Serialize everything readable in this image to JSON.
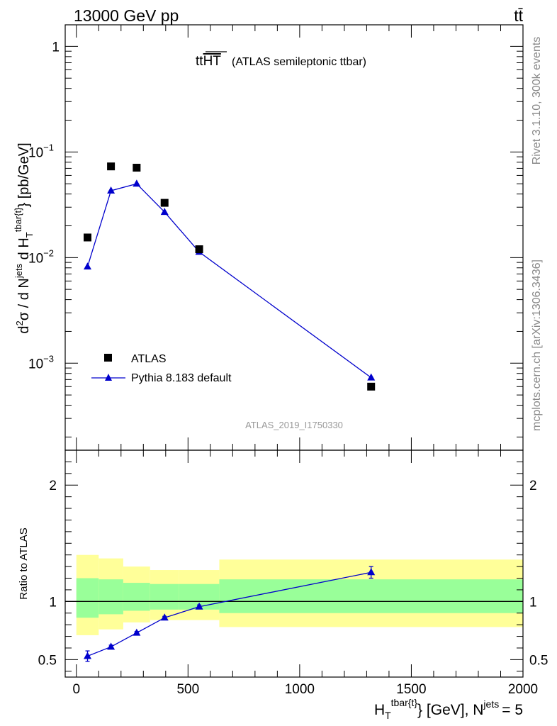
{
  "header": {
    "energy_label": "13000 GeV pp",
    "process_label": "tt̄"
  },
  "side_labels": {
    "rivet": "Rivet 3.1.10,  300k events",
    "mcplots": "mcplots.cern.ch [arXiv:1306.3436]"
  },
  "chart_data": {
    "type": "scatter",
    "title": {
      "main": "tt",
      "overline": "HT",
      "sub": "(ATLAS semileptonic ttbar)"
    },
    "analysis_id": "ATLAS_2019_I1750330",
    "xlabel": {
      "main": "H",
      "sub": "T",
      "sup": "tbar{t}",
      "rest": "} [GeV], N",
      "njets_sup": "jets",
      "njets_value": "= 5"
    },
    "ylabel": {
      "prefix": "d",
      "sup2": "2",
      "sigma": "σ / d N",
      "jets_sup": "jets",
      "mid": " d H",
      "T_sub": "T",
      "tbar_sup": "tbar{t}",
      "suffix": "} [pb/GeV]"
    },
    "ratio_ylabel": "Ratio to ATLAS",
    "xlim": [
      -50,
      2000
    ],
    "ylim": [
      0.00015,
      1.6
    ],
    "ratio_ylim": [
      0.35,
      2.3
    ],
    "x_ticks": [
      0,
      500,
      1000,
      1500,
      2000
    ],
    "x_tick_labels": [
      "0",
      "500",
      "1000",
      "1500",
      "2000"
    ],
    "y_ticks": [
      {
        "value": 1,
        "base": "1",
        "exp": ""
      },
      {
        "value": 0.1,
        "base": "10",
        "exp": "−1"
      },
      {
        "value": 0.01,
        "base": "10",
        "exp": "−2"
      },
      {
        "value": 0.001,
        "base": "10",
        "exp": "−3"
      }
    ],
    "ratio_ticks": [
      {
        "value": 0.5,
        "label": "0.5"
      },
      {
        "value": 1,
        "label": "1"
      },
      {
        "value": 2,
        "label": "2"
      }
    ],
    "bins": [
      {
        "lo": 0,
        "hi": 100,
        "center": 50
      },
      {
        "lo": 100,
        "hi": 210,
        "center": 155
      },
      {
        "lo": 210,
        "hi": 330,
        "center": 270
      },
      {
        "lo": 330,
        "hi": 460,
        "center": 395
      },
      {
        "lo": 460,
        "hi": 640,
        "center": 550
      },
      {
        "lo": 640,
        "hi": 2000,
        "center": 1320
      }
    ],
    "series": [
      {
        "name": "ATLAS",
        "marker": "square",
        "color": "#000000",
        "x": [
          50,
          155,
          270,
          395,
          550,
          1320
        ],
        "y": [
          0.0155,
          0.073,
          0.071,
          0.033,
          0.012,
          0.0006
        ]
      },
      {
        "name": "Pythia 8.183 default",
        "marker": "triangle",
        "color": "#0000cc",
        "x": [
          50,
          155,
          270,
          395,
          550,
          1320
        ],
        "y": [
          0.0082,
          0.043,
          0.05,
          0.027,
          0.0113,
          0.00073
        ]
      }
    ],
    "ratio": {
      "x": [
        50,
        155,
        270,
        395,
        550,
        1320
      ],
      "y": [
        0.53,
        0.61,
        0.73,
        0.86,
        0.955,
        1.25
      ],
      "err": [
        0.045,
        0.015,
        0.012,
        0.012,
        0.015,
        0.05
      ]
    },
    "bands": {
      "green_color": "#99ff99",
      "yellow_color": "#ffff99",
      "green": [
        {
          "lo": 0.86,
          "hi": 1.2
        },
        {
          "lo": 0.89,
          "hi": 1.19
        },
        {
          "lo": 0.92,
          "hi": 1.16
        },
        {
          "lo": 0.93,
          "hi": 1.15
        },
        {
          "lo": 0.93,
          "hi": 1.15
        },
        {
          "lo": 0.9,
          "hi": 1.19
        }
      ],
      "yellow": [
        {
          "lo": 0.71,
          "hi": 1.4
        },
        {
          "lo": 0.76,
          "hi": 1.37
        },
        {
          "lo": 0.82,
          "hi": 1.3
        },
        {
          "lo": 0.84,
          "hi": 1.27
        },
        {
          "lo": 0.84,
          "hi": 1.27
        },
        {
          "lo": 0.78,
          "hi": 1.36
        }
      ]
    },
    "legend": {
      "placement": "lower-left",
      "entries": [
        "ATLAS",
        "Pythia 8.183 default"
      ]
    }
  }
}
